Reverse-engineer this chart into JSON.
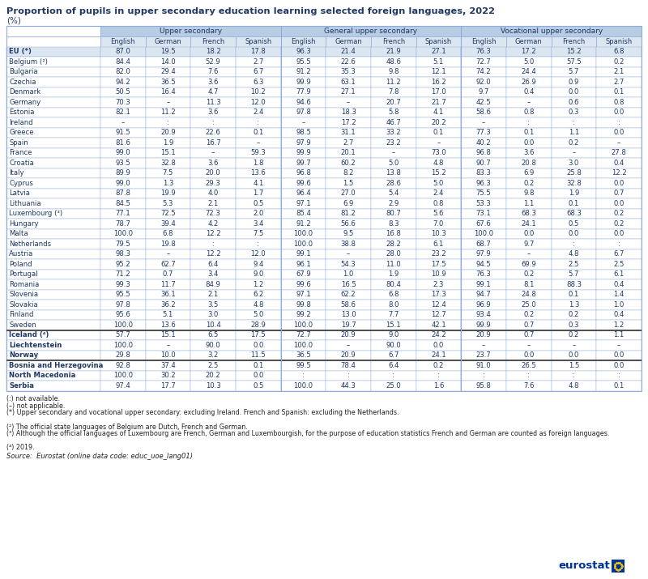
{
  "title": "Proportion of pupils in upper secondary education learning selected foreign languages, 2022",
  "subtitle": "(%)",
  "header_groups": [
    "Upper secondary",
    "General upper secondary",
    "Vocational upper secondary"
  ],
  "sub_headers": [
    "English",
    "German",
    "French",
    "Spanish"
  ],
  "countries": [
    "EU (*)",
    "Belgium (²)",
    "Bulgaria",
    "Czechia",
    "Denmark",
    "Germany",
    "Estonia",
    "Ireland",
    "Greece",
    "Spain",
    "France",
    "Croatia",
    "Italy",
    "Cyprus",
    "Latvia",
    "Lithuania",
    "Luxembourg (³)",
    "Hungary",
    "Malta",
    "Netherlands",
    "Austria",
    "Poland",
    "Portugal",
    "Romania",
    "Slovenia",
    "Slovakia",
    "Finland",
    "Sweden",
    "Iceland (⁴)",
    "Liechtenstein",
    "Norway",
    "Bosnia and Herzegovina",
    "North Macedonia",
    "Serbia"
  ],
  "special": {
    "Germany": {
      "dash": [
        1,
        5,
        9
      ]
    },
    "Austria": {
      "dash": [
        1,
        5,
        9
      ]
    },
    "Ireland": {
      "dash": [
        0,
        4,
        8
      ],
      "colon": [
        1,
        2,
        3,
        9,
        10,
        11
      ]
    },
    "Spain": {
      "dash": [
        3,
        7,
        11
      ]
    },
    "France": {
      "dash": [
        2,
        6,
        10
      ]
    },
    "Netherlands": {
      "colon": [
        2,
        3,
        10,
        11
      ]
    },
    "Liechtenstein": {
      "dash": [
        1,
        5,
        8,
        9,
        10,
        11
      ]
    },
    "North Macedonia": {
      "colon": [
        4,
        5,
        6,
        7,
        8,
        9,
        10,
        11
      ]
    }
  },
  "data": [
    [
      87.0,
      19.5,
      18.2,
      17.8,
      96.3,
      21.4,
      21.9,
      27.1,
      76.3,
      17.2,
      15.2,
      6.8
    ],
    [
      84.4,
      14.0,
      52.9,
      2.7,
      95.5,
      22.6,
      48.6,
      5.1,
      72.7,
      5.0,
      57.5,
      0.2
    ],
    [
      82.0,
      29.4,
      7.6,
      6.7,
      91.2,
      35.3,
      9.8,
      12.1,
      74.2,
      24.4,
      5.7,
      2.1
    ],
    [
      94.2,
      36.5,
      3.6,
      6.3,
      99.9,
      63.1,
      11.2,
      16.2,
      92.0,
      26.9,
      0.9,
      2.7
    ],
    [
      50.5,
      16.4,
      4.7,
      10.2,
      77.9,
      27.1,
      7.8,
      17.0,
      9.7,
      0.4,
      0.0,
      0.1
    ],
    [
      70.3,
      null,
      11.3,
      12.0,
      94.6,
      null,
      20.7,
      21.7,
      42.5,
      null,
      0.6,
      0.8
    ],
    [
      82.1,
      11.2,
      3.6,
      2.4,
      97.8,
      18.3,
      5.8,
      4.1,
      58.6,
      0.8,
      0.3,
      0.0
    ],
    [
      null,
      null,
      null,
      null,
      null,
      17.2,
      46.7,
      20.2,
      null,
      null,
      null,
      null
    ],
    [
      91.5,
      20.9,
      22.6,
      0.1,
      98.5,
      31.1,
      33.2,
      0.1,
      77.3,
      0.1,
      1.1,
      0.0
    ],
    [
      81.6,
      1.9,
      16.7,
      null,
      97.9,
      2.7,
      23.2,
      null,
      40.2,
      0.0,
      0.2,
      null
    ],
    [
      99.0,
      15.1,
      null,
      59.3,
      99.9,
      20.1,
      null,
      73.0,
      96.8,
      3.6,
      null,
      27.8
    ],
    [
      93.5,
      32.8,
      3.6,
      1.8,
      99.7,
      60.2,
      5.0,
      4.8,
      90.7,
      20.8,
      3.0,
      0.4
    ],
    [
      89.9,
      7.5,
      20.0,
      13.6,
      96.8,
      8.2,
      13.8,
      15.2,
      83.3,
      6.9,
      25.8,
      12.2
    ],
    [
      99.0,
      1.3,
      29.3,
      4.1,
      99.6,
      1.5,
      28.6,
      5.0,
      96.3,
      0.2,
      32.8,
      0.0
    ],
    [
      87.8,
      19.9,
      4.0,
      1.7,
      96.4,
      27.0,
      5.4,
      2.4,
      75.5,
      9.8,
      1.9,
      0.7
    ],
    [
      84.5,
      5.3,
      2.1,
      0.5,
      97.1,
      6.9,
      2.9,
      0.8,
      53.3,
      1.1,
      0.1,
      0.0
    ],
    [
      77.1,
      72.5,
      72.3,
      2.0,
      85.4,
      81.2,
      80.7,
      5.6,
      73.1,
      68.3,
      68.3,
      0.2
    ],
    [
      78.7,
      39.4,
      4.2,
      3.4,
      91.2,
      56.6,
      8.3,
      7.0,
      67.6,
      24.1,
      0.5,
      0.2
    ],
    [
      100.0,
      6.8,
      12.2,
      7.5,
      100.0,
      9.5,
      16.8,
      10.3,
      100.0,
      0.0,
      0.0,
      0.0
    ],
    [
      79.5,
      19.8,
      null,
      null,
      100.0,
      38.8,
      28.2,
      6.1,
      68.7,
      9.7,
      null,
      null
    ],
    [
      98.3,
      null,
      12.2,
      12.0,
      99.1,
      null,
      28.0,
      23.2,
      97.9,
      null,
      4.8,
      6.7
    ],
    [
      95.2,
      62.7,
      6.4,
      9.4,
      96.1,
      54.3,
      11.0,
      17.5,
      94.5,
      69.9,
      2.5,
      2.5
    ],
    [
      71.2,
      0.7,
      3.4,
      9.0,
      67.9,
      1.0,
      1.9,
      10.9,
      76.3,
      0.2,
      5.7,
      6.1
    ],
    [
      99.3,
      11.7,
      84.9,
      1.2,
      99.6,
      16.5,
      80.4,
      2.3,
      99.1,
      8.1,
      88.3,
      0.4
    ],
    [
      95.5,
      36.1,
      2.1,
      6.2,
      97.1,
      62.2,
      6.8,
      17.3,
      94.7,
      24.8,
      0.1,
      1.4
    ],
    [
      97.8,
      36.2,
      3.5,
      4.8,
      99.8,
      58.6,
      8.0,
      12.4,
      96.9,
      25.0,
      1.3,
      1.0
    ],
    [
      95.6,
      5.1,
      3.0,
      5.0,
      99.2,
      13.0,
      7.7,
      12.7,
      93.4,
      0.2,
      0.2,
      0.4
    ],
    [
      100.0,
      13.6,
      10.4,
      28.9,
      100.0,
      19.7,
      15.1,
      42.1,
      99.9,
      0.7,
      0.3,
      1.2
    ],
    [
      57.7,
      15.1,
      6.5,
      17.5,
      72.7,
      20.9,
      9.0,
      24.2,
      20.9,
      0.7,
      0.2,
      1.1
    ],
    [
      100.0,
      null,
      90.0,
      0.0,
      100.0,
      null,
      90.0,
      0.0,
      null,
      null,
      null,
      null
    ],
    [
      29.8,
      10.0,
      3.2,
      11.5,
      36.5,
      20.9,
      6.7,
      24.1,
      23.7,
      0.0,
      0.0,
      0.0
    ],
    [
      92.8,
      37.4,
      2.5,
      0.1,
      99.5,
      78.4,
      6.4,
      0.2,
      91.0,
      26.5,
      1.5,
      0.0
    ],
    [
      100.0,
      30.2,
      20.2,
      0.0,
      null,
      null,
      null,
      null,
      null,
      null,
      null,
      null
    ],
    [
      97.4,
      17.7,
      10.3,
      0.5,
      100.0,
      44.3,
      25.0,
      1.6,
      95.8,
      7.6,
      4.8,
      0.1
    ]
  ],
  "footnotes": [
    "(:) not available.",
    "(–) not applicable.",
    "(*) Upper secondary and vocational upper secondary: excluding Ireland. French and Spanish: excluding the Netherlands.",
    "(²) The official state languages of Belgium are Dutch, French and German.",
    "(³) Although the official languages of Luxembourg are French, German and Luxembourgish, for the purpose of education statistics French and German are counted as foreign languages.",
    "(⁴) 2019."
  ],
  "source": "Source:  Eurostat (online data code: educ_uoe_lang01)",
  "header_bg_color": "#b8cce4",
  "subheader_bg_color": "#dce6f1",
  "eu_row_bg_color": "#dce6f1",
  "title_color": "#1f3864",
  "text_color": "#1f3864",
  "border_color": "#8faadc",
  "thick_sep_color": "#000000",
  "efta_start": "Iceland (⁴)",
  "enlargement_start": "Bosnia and Herzegovina"
}
